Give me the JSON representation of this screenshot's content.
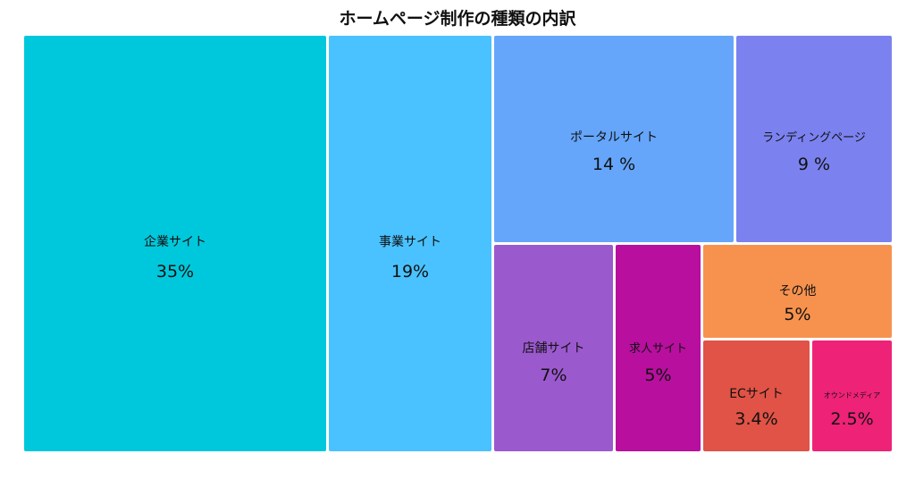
{
  "chart_data": {
    "type": "treemap",
    "title": "ホームページ制作の種類の内訳",
    "items": [
      {
        "name": "企業サイト",
        "value": 35,
        "label": "35%",
        "color": "#00c8dc"
      },
      {
        "name": "事業サイト",
        "value": 19,
        "label": "19%",
        "color": "#4ac2ff"
      },
      {
        "name": "ポータルサイト",
        "value": 14,
        "label": "14 %",
        "color": "#65a6fb"
      },
      {
        "name": "ランディングページ",
        "value": 9,
        "label": "9 %",
        "color": "#7b82ef"
      },
      {
        "name": "店舗サイト",
        "value": 7,
        "label": "7%",
        "color": "#9b59ce"
      },
      {
        "name": "求人サイト",
        "value": 5,
        "label": "5%",
        "color": "#b80f9f"
      },
      {
        "name": "その他",
        "value": 5,
        "label": "5%",
        "color": "#f6924e"
      },
      {
        "name": "ECサイト",
        "value": 3.4,
        "label": "3.4%",
        "color": "#e05346"
      },
      {
        "name": "オウンドメディア",
        "value": 2.5,
        "label": "2.5%",
        "color": "#ee2277"
      }
    ]
  }
}
